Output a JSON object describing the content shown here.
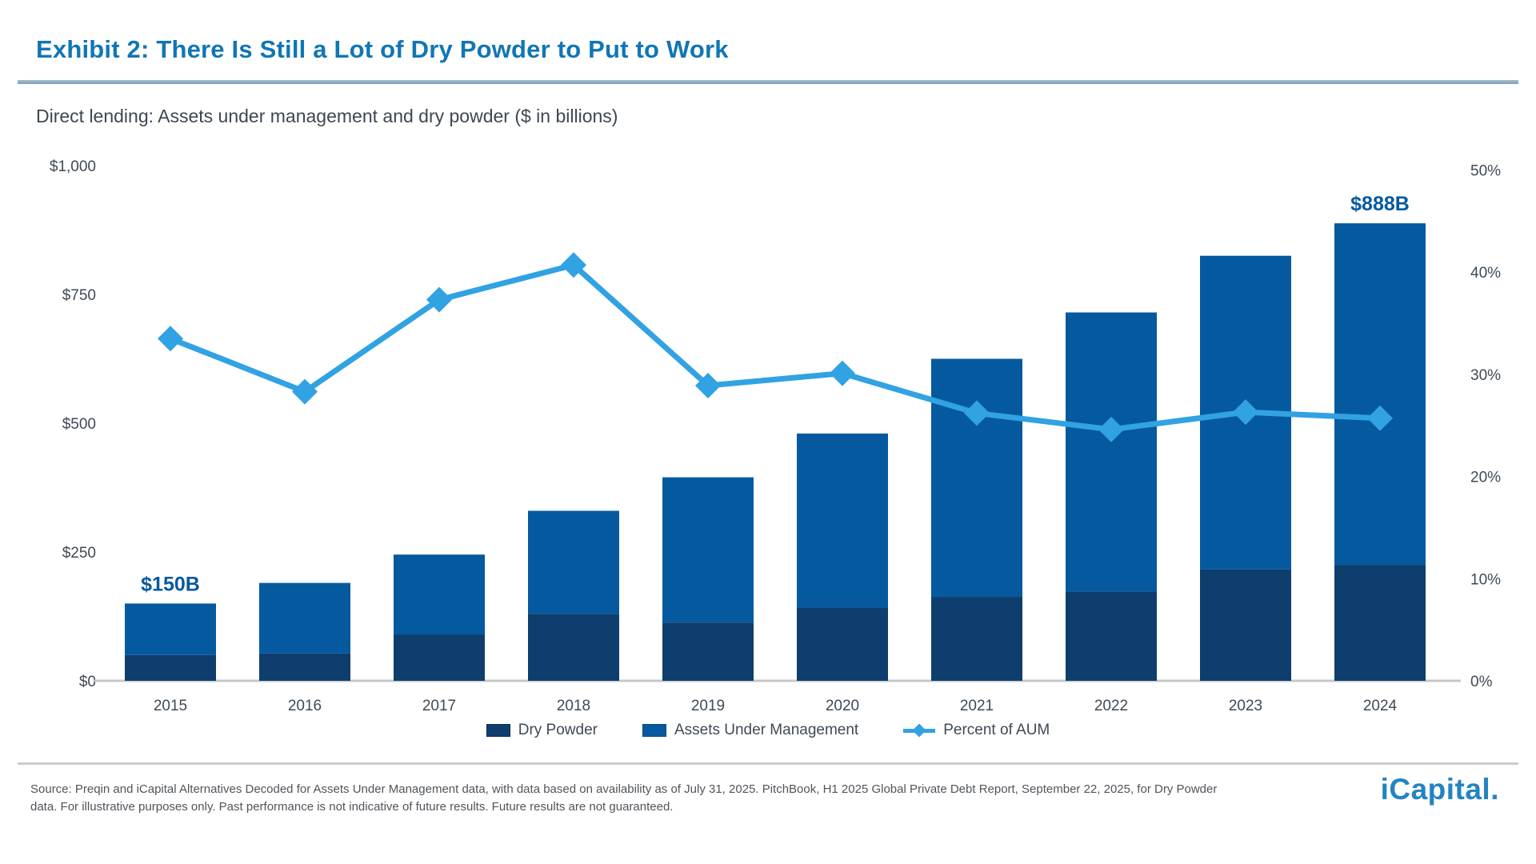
{
  "header": {
    "exhibit_title": "Exhibit 2: There Is Still a Lot of Dry Powder to Put to Work",
    "subtitle": "Direct lending: Assets under management and dry powder ($ in billions)"
  },
  "chart_data": {
    "type": "bar",
    "title": "Direct lending: Assets under management and dry powder ($ in billions)",
    "categories": [
      "2015",
      "2016",
      "2017",
      "2018",
      "2019",
      "2020",
      "2021",
      "2022",
      "2023",
      "2024"
    ],
    "series": [
      {
        "name": "Dry Powder",
        "type": "bar",
        "role": "stack-bottom",
        "color": "#0e3e6e",
        "values": [
          50,
          53,
          90,
          130,
          113,
          142,
          163,
          173,
          216,
          225
        ]
      },
      {
        "name": "Assets Under Management",
        "type": "bar",
        "role": "stack-total",
        "color": "#05599f",
        "values": [
          150,
          190,
          245,
          330,
          395,
          480,
          625,
          715,
          825,
          888
        ]
      },
      {
        "name": "Percent of AUM",
        "type": "line",
        "axis": "right",
        "color": "#31a2e2",
        "marker": "diamond",
        "values": [
          33.5,
          28.3,
          37.3,
          40.7,
          28.9,
          30.1,
          26.2,
          24.6,
          26.3,
          25.7
        ]
      }
    ],
    "left_axis": {
      "ticks": [
        {
          "label": "$0",
          "value": 0
        },
        {
          "label": "$250",
          "value": 250
        },
        {
          "label": "$500",
          "value": 500
        },
        {
          "label": "$750",
          "value": 750
        },
        {
          "label": "$1,000",
          "value": 1000
        }
      ],
      "min": 0,
      "max": 1000
    },
    "right_axis": {
      "ticks": [
        {
          "label": "0%",
          "value": 0
        },
        {
          "label": "10%",
          "value": 10
        },
        {
          "label": "20%",
          "value": 20
        },
        {
          "label": "30%",
          "value": 30
        },
        {
          "label": "40%",
          "value": 40
        },
        {
          "label": "50%",
          "value": 50
        }
      ],
      "min": 0,
      "max": 50
    },
    "annotations": [
      {
        "category": "2015",
        "label": "$150B"
      },
      {
        "category": "2024",
        "label": "$888B"
      }
    ],
    "grid": "off",
    "legend_position": "bottom"
  },
  "legend": {
    "items": [
      {
        "label": "Dry Powder"
      },
      {
        "label": "Assets Under Management"
      },
      {
        "label": "Percent of AUM"
      }
    ]
  },
  "footer": {
    "source_line1": "Source: Preqin and iCapital Alternatives Decoded for Assets Under Management data, with data based on availability as of July 31, 2025. PitchBook, H1 2025 Global Private Debt Report, September 22, 2025, for Dry Powder",
    "source_line2": "data. For illustrative purposes only. Past performance is not indicative of future results. Future results are not guaranteed.",
    "logo_text": "iCapital."
  },
  "colors": {
    "title_blue": "#1076b5",
    "bar_aum": "#05599f",
    "bar_dry_powder": "#0e3e6e",
    "line_percent": "#31a2e2",
    "axis_text": "#3e4a56",
    "annotation_blue": "#05599f"
  }
}
